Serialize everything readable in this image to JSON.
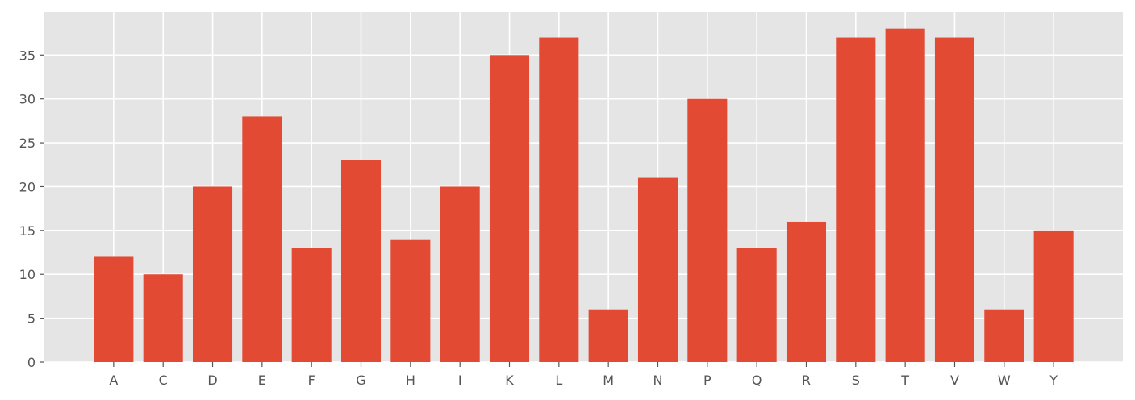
{
  "chart_data": {
    "type": "bar",
    "title": "",
    "xlabel": "",
    "ylabel": "",
    "categories": [
      "A",
      "C",
      "D",
      "E",
      "F",
      "G",
      "H",
      "I",
      "K",
      "L",
      "M",
      "N",
      "P",
      "Q",
      "R",
      "S",
      "T",
      "V",
      "W",
      "Y"
    ],
    "values": [
      12,
      10,
      20,
      28,
      13,
      23,
      14,
      20,
      35,
      37,
      6,
      21,
      30,
      13,
      16,
      37,
      38,
      37,
      6,
      15
    ],
    "ylim": [
      0,
      39.9
    ],
    "yticks": [
      0,
      5,
      10,
      15,
      20,
      25,
      30,
      35
    ],
    "grid": true,
    "colors": {
      "bar": "#E24A33",
      "plot_background": "#E5E5E5",
      "grid": "#FFFFFF",
      "tick_text": "#555555"
    }
  }
}
